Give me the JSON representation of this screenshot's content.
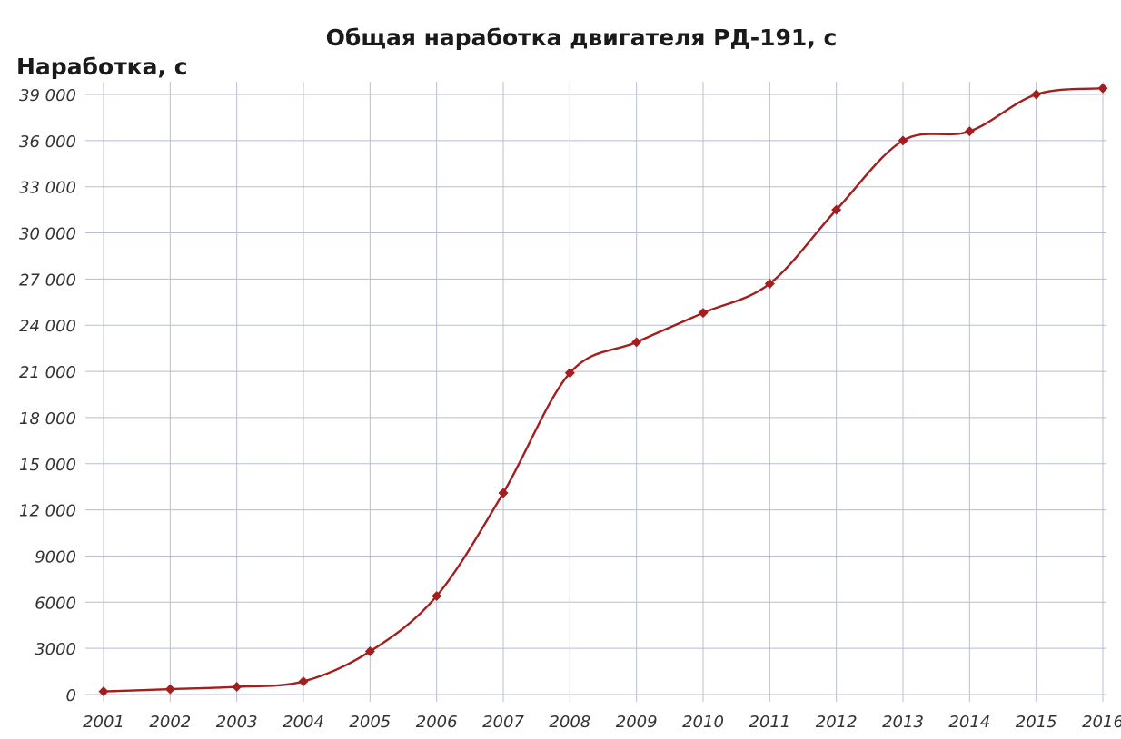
{
  "chart_data": {
    "type": "line",
    "title": "Общая наработка двигателя РД-191, с",
    "ylabel": "Наработка, с",
    "xlabel": "",
    "x": [
      2001,
      2002,
      2003,
      2004,
      2005,
      2006,
      2007,
      2008,
      2009,
      2010,
      2011,
      2012,
      2013,
      2014,
      2015,
      2016
    ],
    "x_tick_labels": [
      "2001",
      "2002",
      "2003",
      "2004",
      "2005",
      "2006",
      "2007",
      "2008",
      "2009",
      "2010",
      "2011",
      "2012",
      "2013",
      "2014",
      "2015",
      "2016"
    ],
    "series": [
      {
        "values": [
          200,
          350,
          500,
          850,
          2800,
          6400,
          13100,
          20900,
          22900,
          24800,
          26700,
          31500,
          36000,
          36600,
          39000,
          39400
        ]
      }
    ],
    "ylim": [
      0,
      39000
    ],
    "y_ticks": [
      0,
      3000,
      6000,
      9000,
      12000,
      15000,
      18000,
      21000,
      24000,
      27000,
      30000,
      33000,
      36000,
      39000
    ],
    "y_tick_labels": [
      "0",
      "3000",
      "6000",
      "9000",
      "12 000",
      "15 000",
      "18 000",
      "21 000",
      "24 000",
      "27 000",
      "30 000",
      "33 000",
      "36 000",
      "39 000"
    ],
    "grid": true,
    "colors": {
      "line": "#a31f1f",
      "marker": "#a31f1f",
      "grid": "#b9bdd0"
    }
  }
}
